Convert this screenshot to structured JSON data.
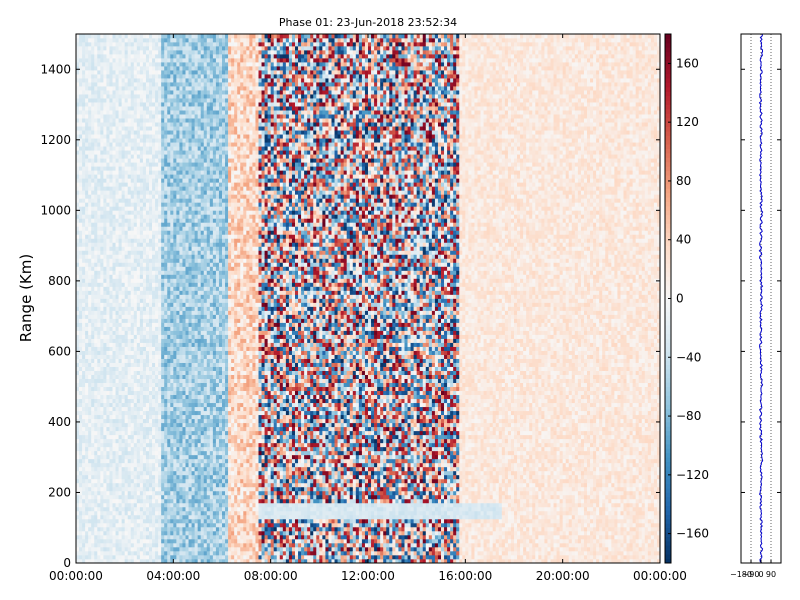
{
  "chart_data": [
    {
      "type": "heatmap",
      "title": "Phase 01: 23-Jun-2018 23:52:34",
      "ylabel": "Range (Km)",
      "xlabel": "",
      "x_ticks": [
        "00:00:00",
        "04:00:00",
        "08:00:00",
        "12:00:00",
        "16:00:00",
        "20:00:00",
        "00:00:00"
      ],
      "y_ticks": [
        0,
        200,
        400,
        600,
        800,
        1000,
        1200,
        1400
      ],
      "xlim_hours": [
        0,
        24
      ],
      "ylim": [
        0,
        1500
      ],
      "colormap": "RdBu_r",
      "colorbar": {
        "ticks": [
          -160,
          -120,
          -80,
          -40,
          0,
          40,
          80,
          120,
          160
        ],
        "range": [
          -180,
          180
        ]
      },
      "regions": [
        {
          "x_hours": [
            0,
            3.5
          ],
          "description": "weak blue (-20)"
        },
        {
          "x_hours": [
            3.5,
            6.3
          ],
          "description": "blue band (-60)"
        },
        {
          "x_hours": [
            6.3,
            7.5
          ],
          "description": "mixed red (+40)"
        },
        {
          "x_hours": [
            7.5,
            15.8
          ],
          "description": "high-noise phase (±180)"
        },
        {
          "x_hours": [
            15.8,
            24
          ],
          "description": "weak red (+20)"
        }
      ]
    },
    {
      "type": "line",
      "x_ticks": [
        "-180",
        "-90",
        "0",
        "90"
      ],
      "xlim": [
        -180,
        180
      ],
      "ylim": [
        0,
        1500
      ],
      "description": "profile near 0 across range"
    }
  ],
  "colors": {
    "line": "#0000cc",
    "axis": "#000000"
  }
}
